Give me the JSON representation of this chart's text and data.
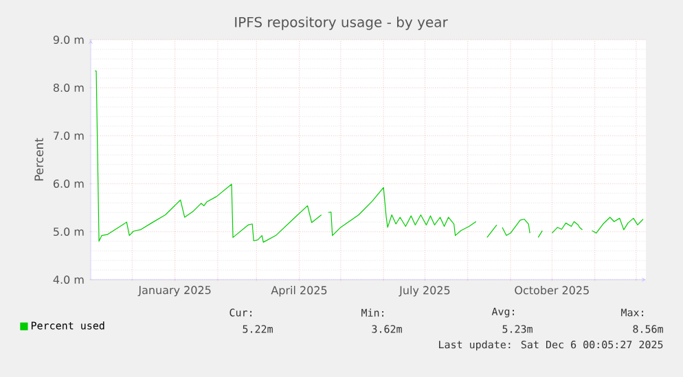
{
  "chart_data": {
    "type": "line",
    "title": "IPFS repository usage - by year",
    "ylabel": "Percent",
    "xlim": [
      "2024-11-01",
      "2025-12-08"
    ],
    "ylim": [
      4,
      9
    ],
    "yticks": [
      {
        "value": 4,
        "label": "4.0 m"
      },
      {
        "value": 5,
        "label": "5.0 m"
      },
      {
        "value": 6,
        "label": "6.0 m"
      },
      {
        "value": 7,
        "label": "7.0 m"
      },
      {
        "value": 8,
        "label": "8.0 m"
      },
      {
        "value": 9,
        "label": "9.0 m"
      }
    ],
    "xticks": [
      {
        "value": "2024-12-01",
        "label": null
      },
      {
        "value": "2025-01-01",
        "label": "January 2025"
      },
      {
        "value": "2025-02-01",
        "label": null
      },
      {
        "value": "2025-03-01",
        "label": null
      },
      {
        "value": "2025-04-01",
        "label": "April 2025"
      },
      {
        "value": "2025-05-01",
        "label": null
      },
      {
        "value": "2025-06-01",
        "label": null
      },
      {
        "value": "2025-07-01",
        "label": "July 2025"
      },
      {
        "value": "2025-08-01",
        "label": null
      },
      {
        "value": "2025-09-01",
        "label": null
      },
      {
        "value": "2025-10-01",
        "label": "October 2025"
      },
      {
        "value": "2025-11-01",
        "label": null
      },
      {
        "value": "2025-12-01",
        "label": null
      }
    ],
    "grid": true,
    "legend": "bottom left",
    "x": [
      "2024-11-04",
      "2024-11-05",
      "2024-11-07",
      "2024-11-09",
      "2024-11-13",
      "2024-11-19",
      "2024-11-26",
      "2024-11-27",
      "2024-11-29",
      "2024-12-02",
      "2024-12-07",
      "2024-12-15",
      "2024-12-25",
      "2025-01-05",
      "2025-01-08",
      "2025-01-14",
      "2025-01-20",
      "2025-01-22",
      "2025-01-24",
      "2025-01-31",
      "2025-02-11",
      "2025-02-12",
      "2025-02-23",
      "2025-02-26",
      "2025-02-27",
      "2025-03-02",
      "2025-03-05",
      "2025-03-06",
      "2025-03-15",
      "2025-03-29",
      "2025-04-07",
      "2025-04-10",
      "2025-04-17",
      "2025-04-19",
      "2025-04-22",
      "2025-04-24",
      "2025-04-25",
      "2025-05-01",
      "2025-05-14",
      "2025-05-24",
      "2025-06-01",
      "2025-06-03",
      "2025-06-04",
      "2025-06-07",
      "2025-06-10",
      "2025-06-13",
      "2025-06-17",
      "2025-06-21",
      "2025-06-24",
      "2025-06-28",
      "2025-07-02",
      "2025-07-05",
      "2025-07-08",
      "2025-07-12",
      "2025-07-15",
      "2025-07-18",
      "2025-07-22",
      "2025-07-23",
      "2025-07-27",
      "2025-08-02",
      "2025-08-07",
      "2025-08-11",
      "2025-08-15",
      "2025-08-22",
      "2025-08-24",
      "2025-08-26",
      "2025-08-29",
      "2025-09-01",
      "2025-09-08",
      "2025-09-11",
      "2025-09-14",
      "2025-09-15",
      "2025-09-18",
      "2025-09-21",
      "2025-09-24",
      "2025-09-27",
      "2025-10-01",
      "2025-10-05",
      "2025-10-08",
      "2025-10-11",
      "2025-10-15",
      "2025-10-17",
      "2025-10-20",
      "2025-10-21",
      "2025-10-23",
      "2025-10-26",
      "2025-10-30",
      "2025-11-02",
      "2025-11-07",
      "2025-11-12",
      "2025-11-15",
      "2025-11-19",
      "2025-11-22",
      "2025-11-25",
      "2025-11-29",
      "2025-12-02",
      "2025-12-06"
    ],
    "series": [
      {
        "name": "Percent used",
        "color": "#00cc00",
        "values": [
          8.35,
          8.35,
          4.8,
          4.92,
          4.94,
          5.05,
          5.18,
          5.2,
          4.92,
          5.01,
          5.04,
          5.18,
          5.35,
          5.66,
          5.3,
          5.42,
          5.59,
          5.54,
          5.62,
          5.73,
          5.99,
          4.88,
          5.14,
          5.16,
          4.81,
          4.83,
          4.92,
          4.78,
          4.92,
          5.3,
          5.54,
          5.19,
          5.35,
          null,
          5.4,
          5.41,
          4.92,
          5.09,
          5.35,
          5.64,
          5.92,
          5.3,
          5.09,
          5.35,
          5.16,
          5.3,
          5.11,
          5.33,
          5.14,
          5.35,
          5.14,
          5.33,
          5.14,
          5.3,
          5.11,
          5.3,
          5.16,
          4.92,
          5.02,
          5.11,
          5.21,
          null,
          4.88,
          5.14,
          null,
          5.09,
          4.92,
          4.97,
          5.24,
          5.26,
          5.16,
          4.97,
          null,
          4.88,
          5.02,
          null,
          4.97,
          5.09,
          5.05,
          5.18,
          5.11,
          5.21,
          5.14,
          5.09,
          5.04,
          null,
          5.02,
          4.97,
          5.16,
          5.3,
          5.21,
          5.28,
          5.04,
          5.18,
          5.28,
          5.14,
          5.26
        ]
      }
    ],
    "annotations": [
      "Cur:",
      "Min:",
      "Avg:",
      "Max:",
      "5.22m",
      "3.62m",
      "5.23m",
      "8.56m",
      "Last update: Sat Dec  6 00:05:27 2025"
    ]
  }
}
